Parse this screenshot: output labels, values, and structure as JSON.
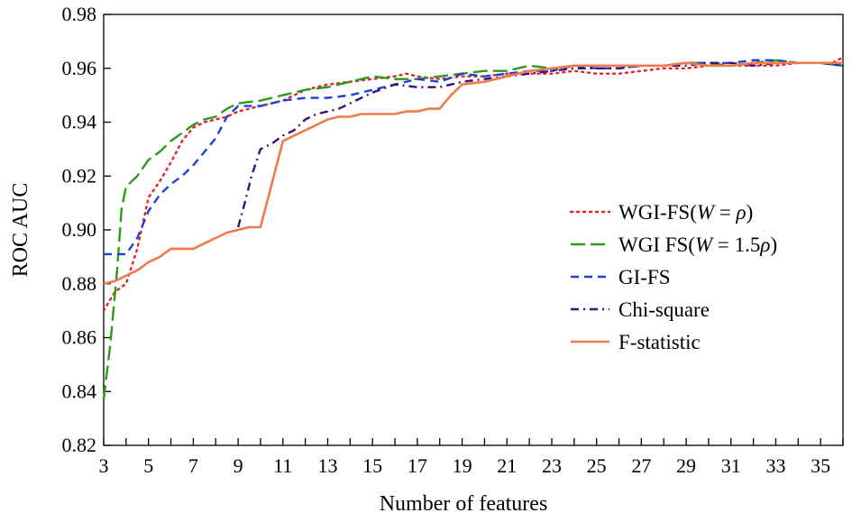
{
  "chart_data": {
    "type": "line",
    "title": "",
    "xlabel": "Number of features",
    "ylabel": "ROC AUC",
    "xlim": [
      3,
      36
    ],
    "ylim": [
      0.82,
      0.98
    ],
    "grid": false,
    "legend_position": "center-right",
    "x_ticks": [
      "3",
      "5",
      "7",
      "9",
      "11",
      "13",
      "15",
      "17",
      "19",
      "21",
      "23",
      "25",
      "27",
      "29",
      "31",
      "33",
      "35"
    ],
    "y_ticks": [
      "0.82",
      "0.84",
      "0.86",
      "0.88",
      "0.90",
      "0.92",
      "0.94",
      "0.96",
      "0.98"
    ],
    "series": [
      {
        "name": "WGI-FS(W = ρ)",
        "legend_parts": [
          "WGI-FS(",
          "W",
          " = ",
          "ρ",
          ")"
        ],
        "color": "#e8202a",
        "style": "dotted",
        "points": [
          [
            3,
            0.87
          ],
          [
            3.5,
            0.877
          ],
          [
            4,
            0.88
          ],
          [
            4.5,
            0.893
          ],
          [
            5,
            0.912
          ],
          [
            5.5,
            0.918
          ],
          [
            6,
            0.925
          ],
          [
            6.5,
            0.933
          ],
          [
            7,
            0.938
          ],
          [
            7.5,
            0.94
          ],
          [
            8,
            0.941
          ],
          [
            8.5,
            0.942
          ],
          [
            9,
            0.944
          ],
          [
            9.5,
            0.945
          ],
          [
            10,
            0.946
          ],
          [
            10.5,
            0.947
          ],
          [
            11,
            0.948
          ],
          [
            12,
            0.952
          ],
          [
            13,
            0.954
          ],
          [
            14,
            0.955
          ],
          [
            15,
            0.956
          ],
          [
            16,
            0.957
          ],
          [
            16.5,
            0.958
          ],
          [
            17,
            0.957
          ],
          [
            18,
            0.956
          ],
          [
            19,
            0.957
          ],
          [
            20,
            0.957
          ],
          [
            21,
            0.958
          ],
          [
            22,
            0.958
          ],
          [
            23,
            0.958
          ],
          [
            24,
            0.959
          ],
          [
            25,
            0.958
          ],
          [
            26,
            0.958
          ],
          [
            27,
            0.959
          ],
          [
            28,
            0.96
          ],
          [
            29,
            0.96
          ],
          [
            30,
            0.961
          ],
          [
            31,
            0.961
          ],
          [
            32,
            0.961
          ],
          [
            33,
            0.961
          ],
          [
            34,
            0.962
          ],
          [
            35,
            0.962
          ],
          [
            35.5,
            0.962
          ],
          [
            36,
            0.964
          ]
        ]
      },
      {
        "name": "WGI FS(W = 1.5ρ)",
        "legend_parts": [
          "WGI FS(",
          "W",
          " = 1.5",
          "ρ",
          ")"
        ],
        "color": "#2e9a1c",
        "style": "longdash",
        "points": [
          [
            3,
            0.837
          ],
          [
            3.3,
            0.858
          ],
          [
            3.6,
            0.885
          ],
          [
            3.8,
            0.908
          ],
          [
            4,
            0.916
          ],
          [
            4.5,
            0.92
          ],
          [
            5,
            0.926
          ],
          [
            5.5,
            0.929
          ],
          [
            6,
            0.933
          ],
          [
            6.5,
            0.936
          ],
          [
            7,
            0.939
          ],
          [
            7.5,
            0.941
          ],
          [
            8,
            0.942
          ],
          [
            8.5,
            0.945
          ],
          [
            9,
            0.947
          ],
          [
            10,
            0.948
          ],
          [
            11,
            0.95
          ],
          [
            12,
            0.952
          ],
          [
            13,
            0.953
          ],
          [
            14,
            0.955
          ],
          [
            15,
            0.957
          ],
          [
            16,
            0.956
          ],
          [
            17,
            0.956
          ],
          [
            18,
            0.957
          ],
          [
            19,
            0.958
          ],
          [
            20,
            0.959
          ],
          [
            21,
            0.959
          ],
          [
            22,
            0.961
          ],
          [
            23,
            0.96
          ],
          [
            24,
            0.961
          ],
          [
            25,
            0.961
          ],
          [
            26,
            0.961
          ],
          [
            27,
            0.961
          ],
          [
            28,
            0.961
          ],
          [
            29,
            0.962
          ],
          [
            30,
            0.962
          ],
          [
            31,
            0.961
          ],
          [
            32,
            0.962
          ],
          [
            33,
            0.963
          ],
          [
            34,
            0.962
          ],
          [
            35,
            0.962
          ],
          [
            36,
            0.961
          ]
        ]
      },
      {
        "name": "GI-FS",
        "legend_parts": [
          "GI-FS"
        ],
        "color": "#1f3fd8",
        "style": "dashed",
        "points": [
          [
            3,
            0.891
          ],
          [
            3.5,
            0.891
          ],
          [
            4,
            0.891
          ],
          [
            4.5,
            0.897
          ],
          [
            5,
            0.907
          ],
          [
            5.5,
            0.913
          ],
          [
            6,
            0.917
          ],
          [
            6.5,
            0.92
          ],
          [
            7,
            0.924
          ],
          [
            7.5,
            0.929
          ],
          [
            8,
            0.934
          ],
          [
            8.5,
            0.942
          ],
          [
            9,
            0.946
          ],
          [
            9.5,
            0.946
          ],
          [
            10,
            0.946
          ],
          [
            10.5,
            0.947
          ],
          [
            11,
            0.948
          ],
          [
            12,
            0.949
          ],
          [
            13,
            0.949
          ],
          [
            14,
            0.95
          ],
          [
            15,
            0.952
          ],
          [
            16,
            0.954
          ],
          [
            17,
            0.956
          ],
          [
            18,
            0.955
          ],
          [
            19,
            0.958
          ],
          [
            20,
            0.957
          ],
          [
            21,
            0.958
          ],
          [
            22,
            0.959
          ],
          [
            23,
            0.959
          ],
          [
            24,
            0.961
          ],
          [
            25,
            0.96
          ],
          [
            26,
            0.96
          ],
          [
            27,
            0.961
          ],
          [
            28,
            0.961
          ],
          [
            29,
            0.962
          ],
          [
            30,
            0.962
          ],
          [
            31,
            0.962
          ],
          [
            32,
            0.963
          ],
          [
            33,
            0.963
          ],
          [
            34,
            0.962
          ],
          [
            35,
            0.962
          ],
          [
            36,
            0.961
          ]
        ]
      },
      {
        "name": "Chi-square",
        "legend_parts": [
          "Chi-square"
        ],
        "color": "#3a1275",
        "style": "dashdot",
        "points": [
          [
            9,
            0.901
          ],
          [
            9.3,
            0.91
          ],
          [
            9.6,
            0.92
          ],
          [
            10,
            0.93
          ],
          [
            10.5,
            0.932
          ],
          [
            11,
            0.935
          ],
          [
            11.5,
            0.937
          ],
          [
            12,
            0.941
          ],
          [
            12.5,
            0.943
          ],
          [
            13,
            0.944
          ],
          [
            13.5,
            0.945
          ],
          [
            14,
            0.947
          ],
          [
            15,
            0.951
          ],
          [
            16,
            0.954
          ],
          [
            17,
            0.953
          ],
          [
            18,
            0.953
          ],
          [
            19,
            0.955
          ],
          [
            20,
            0.956
          ],
          [
            21,
            0.957
          ],
          [
            22,
            0.958
          ],
          [
            23,
            0.959
          ],
          [
            24,
            0.96
          ],
          [
            25,
            0.96
          ],
          [
            26,
            0.96
          ],
          [
            27,
            0.961
          ],
          [
            28,
            0.961
          ],
          [
            29,
            0.961
          ],
          [
            30,
            0.962
          ],
          [
            31,
            0.962
          ],
          [
            32,
            0.961
          ],
          [
            33,
            0.962
          ],
          [
            34,
            0.962
          ],
          [
            35,
            0.962
          ],
          [
            36,
            0.961
          ]
        ]
      },
      {
        "name": "F-statistic",
        "legend_parts": [
          "F-statistic"
        ],
        "color": "#ef7b4a",
        "style": "solid",
        "points": [
          [
            3,
            0.88
          ],
          [
            3.5,
            0.881
          ],
          [
            4,
            0.883
          ],
          [
            4.5,
            0.885
          ],
          [
            5,
            0.888
          ],
          [
            5.5,
            0.89
          ],
          [
            6,
            0.893
          ],
          [
            6.5,
            0.893
          ],
          [
            7,
            0.893
          ],
          [
            7.5,
            0.895
          ],
          [
            8,
            0.897
          ],
          [
            8.5,
            0.899
          ],
          [
            9,
            0.9
          ],
          [
            9.5,
            0.901
          ],
          [
            10,
            0.901
          ],
          [
            10.5,
            0.917
          ],
          [
            11,
            0.933
          ],
          [
            11.5,
            0.935
          ],
          [
            12,
            0.937
          ],
          [
            12.5,
            0.939
          ],
          [
            13,
            0.941
          ],
          [
            13.5,
            0.942
          ],
          [
            14,
            0.942
          ],
          [
            14.5,
            0.943
          ],
          [
            15,
            0.943
          ],
          [
            15.5,
            0.943
          ],
          [
            16,
            0.943
          ],
          [
            16.5,
            0.944
          ],
          [
            17,
            0.944
          ],
          [
            17.5,
            0.945
          ],
          [
            18,
            0.945
          ],
          [
            18.5,
            0.95
          ],
          [
            19,
            0.954
          ],
          [
            20,
            0.955
          ],
          [
            21,
            0.957
          ],
          [
            22,
            0.959
          ],
          [
            23,
            0.96
          ],
          [
            24,
            0.961
          ],
          [
            25,
            0.961
          ],
          [
            26,
            0.961
          ],
          [
            27,
            0.961
          ],
          [
            28,
            0.961
          ],
          [
            29,
            0.962
          ],
          [
            30,
            0.961
          ],
          [
            31,
            0.961
          ],
          [
            32,
            0.962
          ],
          [
            33,
            0.962
          ],
          [
            34,
            0.962
          ],
          [
            35,
            0.962
          ],
          [
            36,
            0.962
          ]
        ]
      }
    ]
  }
}
